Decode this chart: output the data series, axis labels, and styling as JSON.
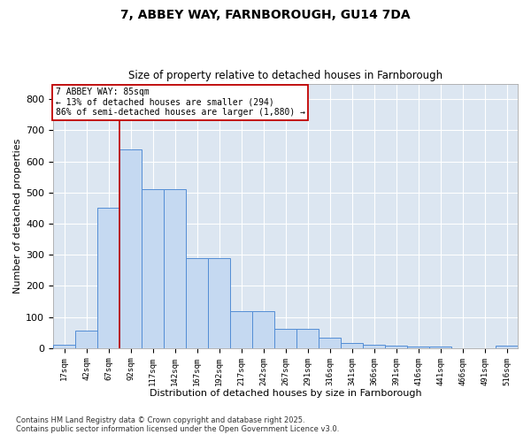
{
  "title1": "7, ABBEY WAY, FARNBOROUGH, GU14 7DA",
  "title2": "Size of property relative to detached houses in Farnborough",
  "xlabel": "Distribution of detached houses by size in Farnborough",
  "ylabel": "Number of detached properties",
  "bar_color": "#c5d9f1",
  "bar_edge_color": "#538dd5",
  "bg_color": "#dce6f1",
  "grid_color": "#ffffff",
  "fig_bg_color": "#ffffff",
  "vline_color": "#c00000",
  "annotation_box_color": "#c00000",
  "categories": [
    "17sqm",
    "42sqm",
    "67sqm",
    "92sqm",
    "117sqm",
    "142sqm",
    "167sqm",
    "192sqm",
    "217sqm",
    "242sqm",
    "267sqm",
    "291sqm",
    "316sqm",
    "341sqm",
    "366sqm",
    "391sqm",
    "416sqm",
    "441sqm",
    "466sqm",
    "491sqm",
    "516sqm"
  ],
  "values": [
    10,
    55,
    450,
    640,
    510,
    510,
    290,
    290,
    120,
    120,
    63,
    63,
    33,
    18,
    10,
    8,
    5,
    5,
    0,
    0,
    7
  ],
  "vline_x": 2.5,
  "annotation_title": "7 ABBEY WAY: 85sqm",
  "annotation_line1": "← 13% of detached houses are smaller (294)",
  "annotation_line2": "86% of semi-detached houses are larger (1,880) →",
  "ylim": [
    0,
    850
  ],
  "yticks": [
    0,
    100,
    200,
    300,
    400,
    500,
    600,
    700,
    800
  ],
  "footnote1": "Contains HM Land Registry data © Crown copyright and database right 2025.",
  "footnote2": "Contains public sector information licensed under the Open Government Licence v3.0."
}
